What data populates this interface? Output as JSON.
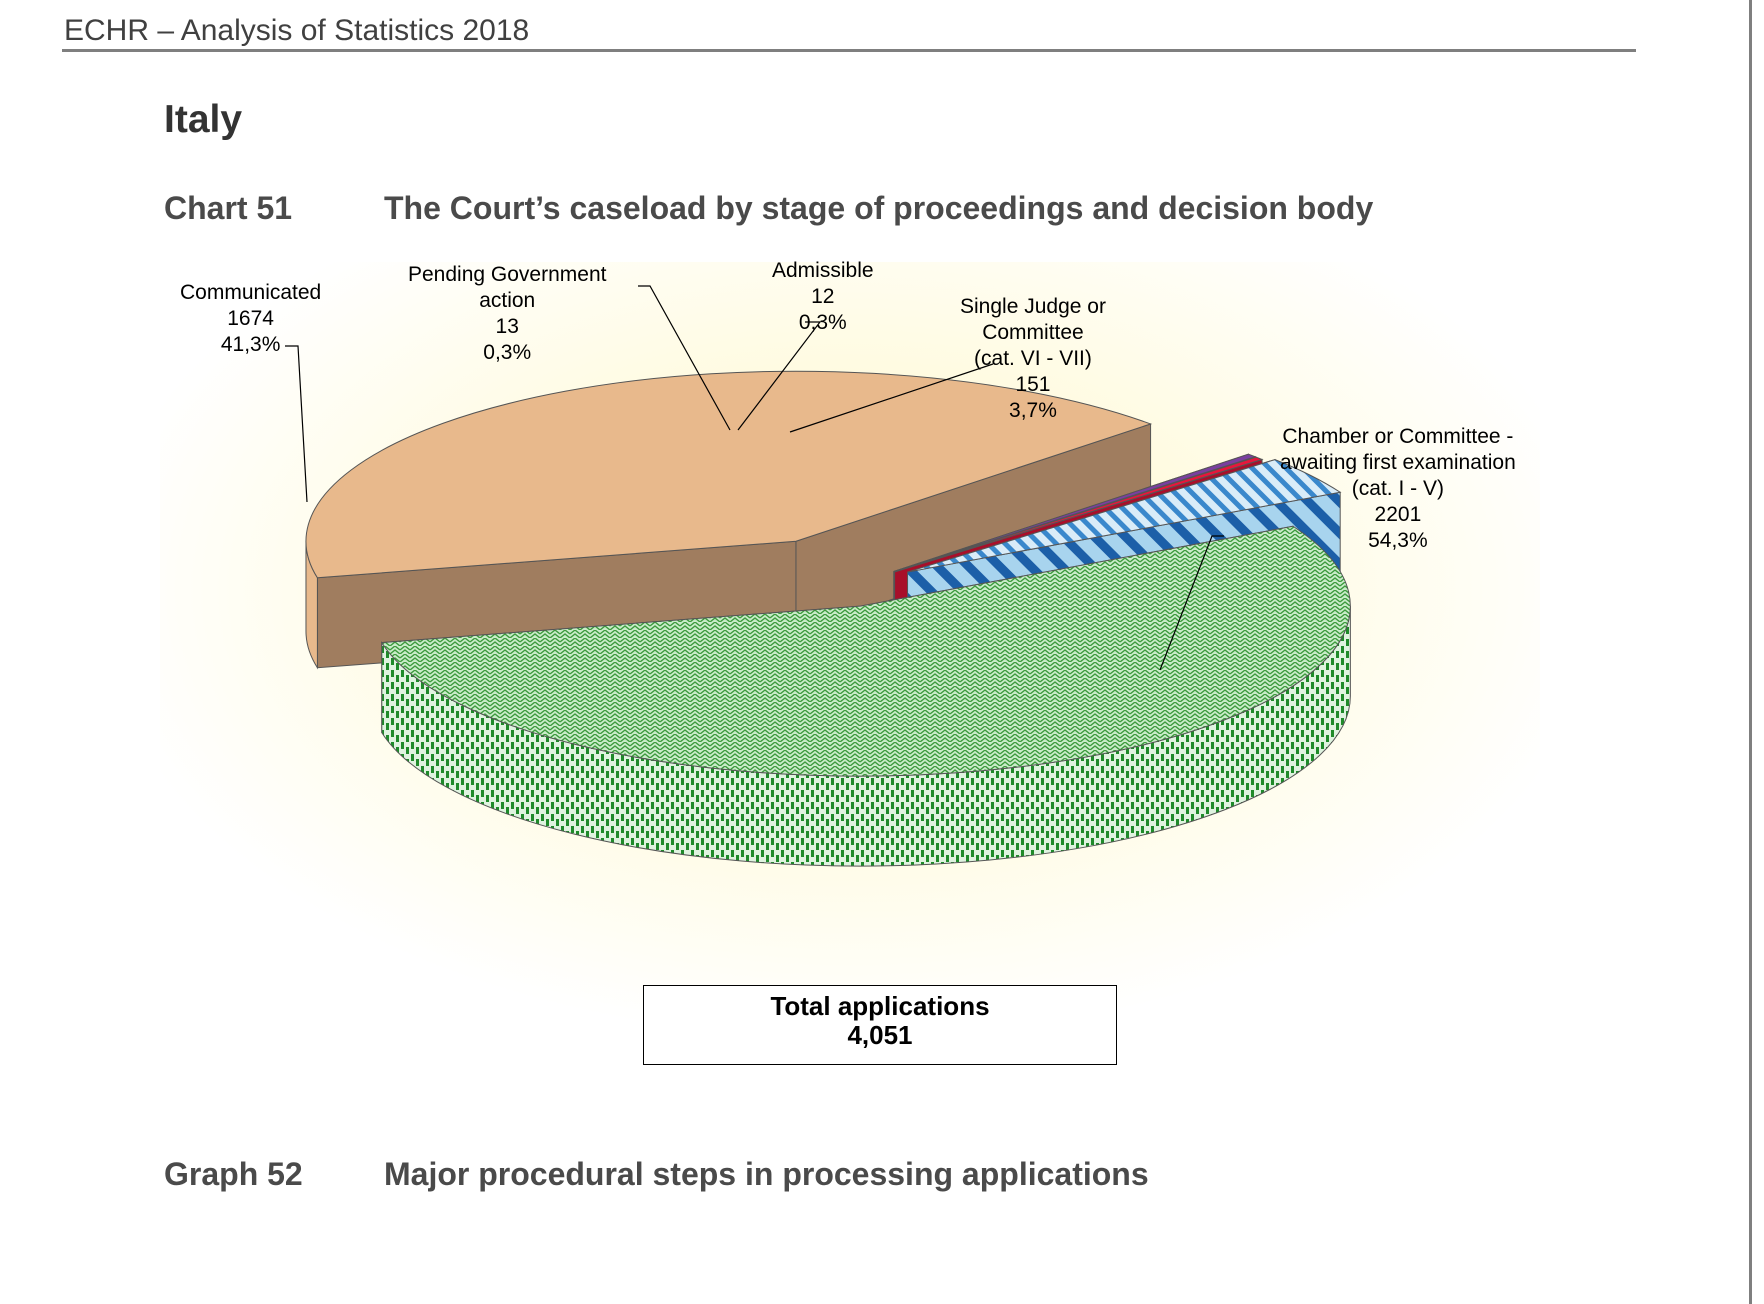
{
  "header": {
    "text": "ECHR – Analysis of Statistics 2018"
  },
  "page": {
    "country": "Italy"
  },
  "chart51": {
    "number": "Chart 51",
    "title": "The Court’s caseload by stage of proceedings and decision body"
  },
  "graph52": {
    "number": "Graph 52",
    "title": "Major procedural steps in processing applications"
  },
  "total": {
    "label": "Total applications",
    "value": "4,051"
  },
  "colors": {
    "communicated": "#e8b98c",
    "communicated_side": "#a07d5f",
    "chamber": "#8fcf8f",
    "single_judge": "#7fb8e6",
    "pending": "#e8163b",
    "admissible": "#7a3fa0",
    "background_glow": "#fffbdc"
  },
  "chart_data": {
    "type": "pie",
    "style": "3d-exploded",
    "title": "The Court’s caseload by stage of proceedings and decision body",
    "total": 4051,
    "slices": [
      {
        "name": "Communicated",
        "value": 1674,
        "percent": "41,3%",
        "label_lines": [
          "Communicated",
          "1674",
          "41,3%"
        ]
      },
      {
        "name": "Pending Government action",
        "value": 13,
        "percent": "0,3%",
        "label_lines": [
          "Pending Government",
          "action",
          "13",
          "0,3%"
        ]
      },
      {
        "name": "Admissible",
        "value": 12,
        "percent": "0,3%",
        "label_lines": [
          "Admissible",
          "12",
          "0,3%"
        ]
      },
      {
        "name": "Single Judge or Committee (cat. VI - VII)",
        "value": 151,
        "percent": "3,7%",
        "label_lines": [
          "Single Judge or",
          "Committee",
          "(cat. VI - VII)",
          "151",
          "3,7%"
        ]
      },
      {
        "name": "Chamber or Committee - awaiting first examination (cat. I - V)",
        "value": 2201,
        "percent": "54,3%",
        "label_lines": [
          "Chamber or Committee -",
          "awaiting first examination",
          "(cat. I - V)",
          "2201",
          "54,3%"
        ]
      }
    ]
  }
}
